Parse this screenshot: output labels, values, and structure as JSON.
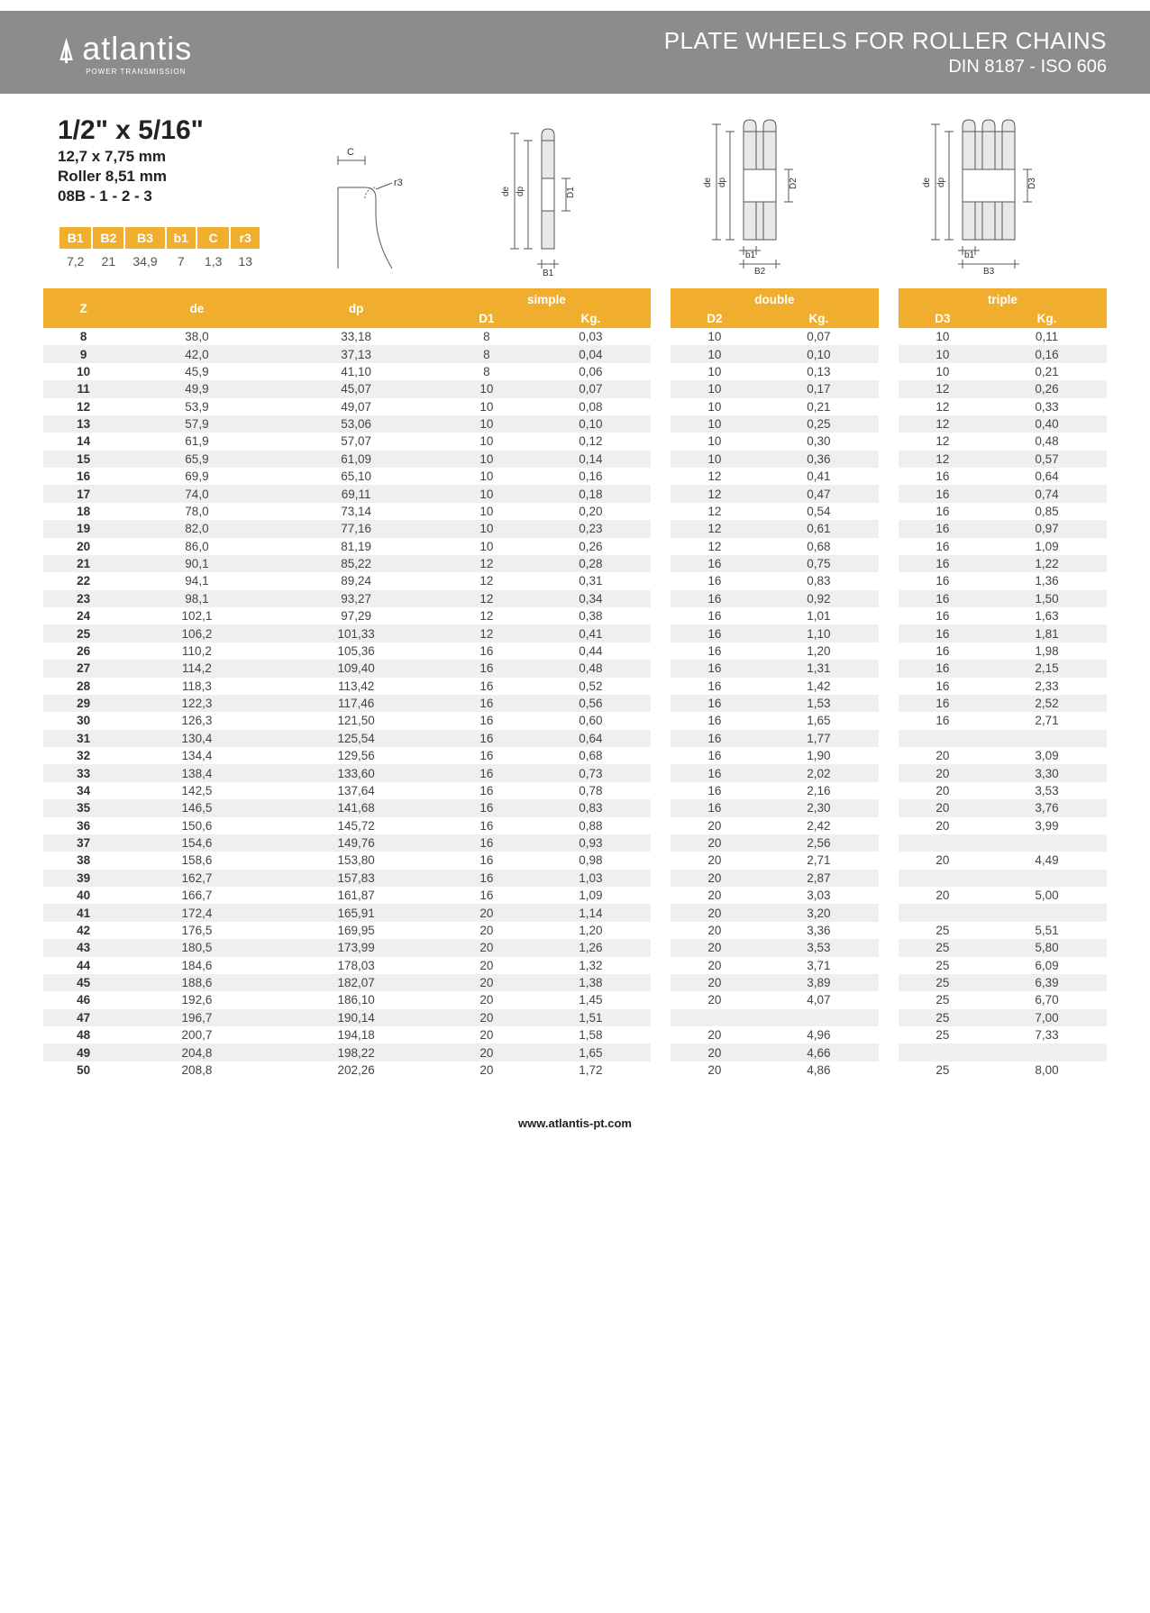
{
  "header": {
    "brand_mark": "A",
    "brand_text": "atlantis",
    "brand_sub": "POWER TRANSMISSION",
    "title_main": "PLATE WHEELS FOR ROLLER CHAINS",
    "title_sub": "DIN 8187 - ISO 606"
  },
  "spec": {
    "size": "1/2\" x 5/16\"",
    "mm": "12,7 x 7,75 mm",
    "roller": "Roller 8,51 mm",
    "code": "08B - 1 - 2 - 3",
    "small_headers": [
      "B1",
      "B2",
      "B3",
      "b1",
      "C",
      "r3"
    ],
    "small_values": [
      "7,2",
      "21",
      "34,9",
      "7",
      "1,3",
      "13"
    ]
  },
  "diagram_labels": {
    "c": "C",
    "r3": "r3",
    "de": "de",
    "dp": "dp",
    "d1": "D1",
    "d2": "D2",
    "d3": "D3",
    "b1": "B1",
    "b2": "B2",
    "b3": "B3",
    "sb1": "b1"
  },
  "table": {
    "headers": {
      "z": "Z",
      "de": "de",
      "dp": "dp",
      "simple": "simple",
      "d1": "D1",
      "kg": "Kg.",
      "double": "double",
      "d2": "D2",
      "triple": "triple",
      "d3": "D3"
    },
    "col_widths": {
      "z": "50px",
      "de": "80px",
      "dp": "80px",
      "d": "90px",
      "kg": "90px",
      "sep": "22px"
    },
    "row_shade_color": "#efefef",
    "header_bg": "#f0ad2e",
    "rows": [
      {
        "z": "8",
        "de": "38,0",
        "dp": "33,18",
        "d1": "8",
        "kg1": "0,03",
        "d2": "10",
        "kg2": "0,07",
        "d3": "10",
        "kg3": "0,11"
      },
      {
        "z": "9",
        "de": "42,0",
        "dp": "37,13",
        "d1": "8",
        "kg1": "0,04",
        "d2": "10",
        "kg2": "0,10",
        "d3": "10",
        "kg3": "0,16"
      },
      {
        "z": "10",
        "de": "45,9",
        "dp": "41,10",
        "d1": "8",
        "kg1": "0,06",
        "d2": "10",
        "kg2": "0,13",
        "d3": "10",
        "kg3": "0,21"
      },
      {
        "z": "11",
        "de": "49,9",
        "dp": "45,07",
        "d1": "10",
        "kg1": "0,07",
        "d2": "10",
        "kg2": "0,17",
        "d3": "12",
        "kg3": "0,26"
      },
      {
        "z": "12",
        "de": "53,9",
        "dp": "49,07",
        "d1": "10",
        "kg1": "0,08",
        "d2": "10",
        "kg2": "0,21",
        "d3": "12",
        "kg3": "0,33"
      },
      {
        "z": "13",
        "de": "57,9",
        "dp": "53,06",
        "d1": "10",
        "kg1": "0,10",
        "d2": "10",
        "kg2": "0,25",
        "d3": "12",
        "kg3": "0,40"
      },
      {
        "z": "14",
        "de": "61,9",
        "dp": "57,07",
        "d1": "10",
        "kg1": "0,12",
        "d2": "10",
        "kg2": "0,30",
        "d3": "12",
        "kg3": "0,48"
      },
      {
        "z": "15",
        "de": "65,9",
        "dp": "61,09",
        "d1": "10",
        "kg1": "0,14",
        "d2": "10",
        "kg2": "0,36",
        "d3": "12",
        "kg3": "0,57"
      },
      {
        "z": "16",
        "de": "69,9",
        "dp": "65,10",
        "d1": "10",
        "kg1": "0,16",
        "d2": "12",
        "kg2": "0,41",
        "d3": "16",
        "kg3": "0,64"
      },
      {
        "z": "17",
        "de": "74,0",
        "dp": "69,11",
        "d1": "10",
        "kg1": "0,18",
        "d2": "12",
        "kg2": "0,47",
        "d3": "16",
        "kg3": "0,74"
      },
      {
        "z": "18",
        "de": "78,0",
        "dp": "73,14",
        "d1": "10",
        "kg1": "0,20",
        "d2": "12",
        "kg2": "0,54",
        "d3": "16",
        "kg3": "0,85"
      },
      {
        "z": "19",
        "de": "82,0",
        "dp": "77,16",
        "d1": "10",
        "kg1": "0,23",
        "d2": "12",
        "kg2": "0,61",
        "d3": "16",
        "kg3": "0,97"
      },
      {
        "z": "20",
        "de": "86,0",
        "dp": "81,19",
        "d1": "10",
        "kg1": "0,26",
        "d2": "12",
        "kg2": "0,68",
        "d3": "16",
        "kg3": "1,09"
      },
      {
        "z": "21",
        "de": "90,1",
        "dp": "85,22",
        "d1": "12",
        "kg1": "0,28",
        "d2": "16",
        "kg2": "0,75",
        "d3": "16",
        "kg3": "1,22"
      },
      {
        "z": "22",
        "de": "94,1",
        "dp": "89,24",
        "d1": "12",
        "kg1": "0,31",
        "d2": "16",
        "kg2": "0,83",
        "d3": "16",
        "kg3": "1,36"
      },
      {
        "z": "23",
        "de": "98,1",
        "dp": "93,27",
        "d1": "12",
        "kg1": "0,34",
        "d2": "16",
        "kg2": "0,92",
        "d3": "16",
        "kg3": "1,50"
      },
      {
        "z": "24",
        "de": "102,1",
        "dp": "97,29",
        "d1": "12",
        "kg1": "0,38",
        "d2": "16",
        "kg2": "1,01",
        "d3": "16",
        "kg3": "1,63"
      },
      {
        "z": "25",
        "de": "106,2",
        "dp": "101,33",
        "d1": "12",
        "kg1": "0,41",
        "d2": "16",
        "kg2": "1,10",
        "d3": "16",
        "kg3": "1,81"
      },
      {
        "z": "26",
        "de": "110,2",
        "dp": "105,36",
        "d1": "16",
        "kg1": "0,44",
        "d2": "16",
        "kg2": "1,20",
        "d3": "16",
        "kg3": "1,98"
      },
      {
        "z": "27",
        "de": "114,2",
        "dp": "109,40",
        "d1": "16",
        "kg1": "0,48",
        "d2": "16",
        "kg2": "1,31",
        "d3": "16",
        "kg3": "2,15"
      },
      {
        "z": "28",
        "de": "118,3",
        "dp": "113,42",
        "d1": "16",
        "kg1": "0,52",
        "d2": "16",
        "kg2": "1,42",
        "d3": "16",
        "kg3": "2,33"
      },
      {
        "z": "29",
        "de": "122,3",
        "dp": "117,46",
        "d1": "16",
        "kg1": "0,56",
        "d2": "16",
        "kg2": "1,53",
        "d3": "16",
        "kg3": "2,52"
      },
      {
        "z": "30",
        "de": "126,3",
        "dp": "121,50",
        "d1": "16",
        "kg1": "0,60",
        "d2": "16",
        "kg2": "1,65",
        "d3": "16",
        "kg3": "2,71"
      },
      {
        "z": "31",
        "de": "130,4",
        "dp": "125,54",
        "d1": "16",
        "kg1": "0,64",
        "d2": "16",
        "kg2": "1,77",
        "d3": "",
        "kg3": ""
      },
      {
        "z": "32",
        "de": "134,4",
        "dp": "129,56",
        "d1": "16",
        "kg1": "0,68",
        "d2": "16",
        "kg2": "1,90",
        "d3": "20",
        "kg3": "3,09"
      },
      {
        "z": "33",
        "de": "138,4",
        "dp": "133,60",
        "d1": "16",
        "kg1": "0,73",
        "d2": "16",
        "kg2": "2,02",
        "d3": "20",
        "kg3": "3,30"
      },
      {
        "z": "34",
        "de": "142,5",
        "dp": "137,64",
        "d1": "16",
        "kg1": "0,78",
        "d2": "16",
        "kg2": "2,16",
        "d3": "20",
        "kg3": "3,53"
      },
      {
        "z": "35",
        "de": "146,5",
        "dp": "141,68",
        "d1": "16",
        "kg1": "0,83",
        "d2": "16",
        "kg2": "2,30",
        "d3": "20",
        "kg3": "3,76"
      },
      {
        "z": "36",
        "de": "150,6",
        "dp": "145,72",
        "d1": "16",
        "kg1": "0,88",
        "d2": "20",
        "kg2": "2,42",
        "d3": "20",
        "kg3": "3,99"
      },
      {
        "z": "37",
        "de": "154,6",
        "dp": "149,76",
        "d1": "16",
        "kg1": "0,93",
        "d2": "20",
        "kg2": "2,56",
        "d3": "",
        "kg3": ""
      },
      {
        "z": "38",
        "de": "158,6",
        "dp": "153,80",
        "d1": "16",
        "kg1": "0,98",
        "d2": "20",
        "kg2": "2,71",
        "d3": "20",
        "kg3": "4,49"
      },
      {
        "z": "39",
        "de": "162,7",
        "dp": "157,83",
        "d1": "16",
        "kg1": "1,03",
        "d2": "20",
        "kg2": "2,87",
        "d3": "",
        "kg3": ""
      },
      {
        "z": "40",
        "de": "166,7",
        "dp": "161,87",
        "d1": "16",
        "kg1": "1,09",
        "d2": "20",
        "kg2": "3,03",
        "d3": "20",
        "kg3": "5,00"
      },
      {
        "z": "41",
        "de": "172,4",
        "dp": "165,91",
        "d1": "20",
        "kg1": "1,14",
        "d2": "20",
        "kg2": "3,20",
        "d3": "",
        "kg3": ""
      },
      {
        "z": "42",
        "de": "176,5",
        "dp": "169,95",
        "d1": "20",
        "kg1": "1,20",
        "d2": "20",
        "kg2": "3,36",
        "d3": "25",
        "kg3": "5,51"
      },
      {
        "z": "43",
        "de": "180,5",
        "dp": "173,99",
        "d1": "20",
        "kg1": "1,26",
        "d2": "20",
        "kg2": "3,53",
        "d3": "25",
        "kg3": "5,80"
      },
      {
        "z": "44",
        "de": "184,6",
        "dp": "178,03",
        "d1": "20",
        "kg1": "1,32",
        "d2": "20",
        "kg2": "3,71",
        "d3": "25",
        "kg3": "6,09"
      },
      {
        "z": "45",
        "de": "188,6",
        "dp": "182,07",
        "d1": "20",
        "kg1": "1,38",
        "d2": "20",
        "kg2": "3,89",
        "d3": "25",
        "kg3": "6,39"
      },
      {
        "z": "46",
        "de": "192,6",
        "dp": "186,10",
        "d1": "20",
        "kg1": "1,45",
        "d2": "20",
        "kg2": "4,07",
        "d3": "25",
        "kg3": "6,70"
      },
      {
        "z": "47",
        "de": "196,7",
        "dp": "190,14",
        "d1": "20",
        "kg1": "1,51",
        "d2": "",
        "kg2": "",
        "d3": "25",
        "kg3": "7,00"
      },
      {
        "z": "48",
        "de": "200,7",
        "dp": "194,18",
        "d1": "20",
        "kg1": "1,58",
        "d2": "20",
        "kg2": "4,96",
        "d3": "25",
        "kg3": "7,33"
      },
      {
        "z": "49",
        "de": "204,8",
        "dp": "198,22",
        "d1": "20",
        "kg1": "1,65",
        "d2": "20",
        "kg2": "4,66",
        "d3": "",
        "kg3": ""
      },
      {
        "z": "50",
        "de": "208,8",
        "dp": "202,26",
        "d1": "20",
        "kg1": "1,72",
        "d2": "20",
        "kg2": "4,86",
        "d3": "25",
        "kg3": "8,00"
      }
    ]
  },
  "footer": {
    "url": "www.atlantis-pt.com"
  }
}
